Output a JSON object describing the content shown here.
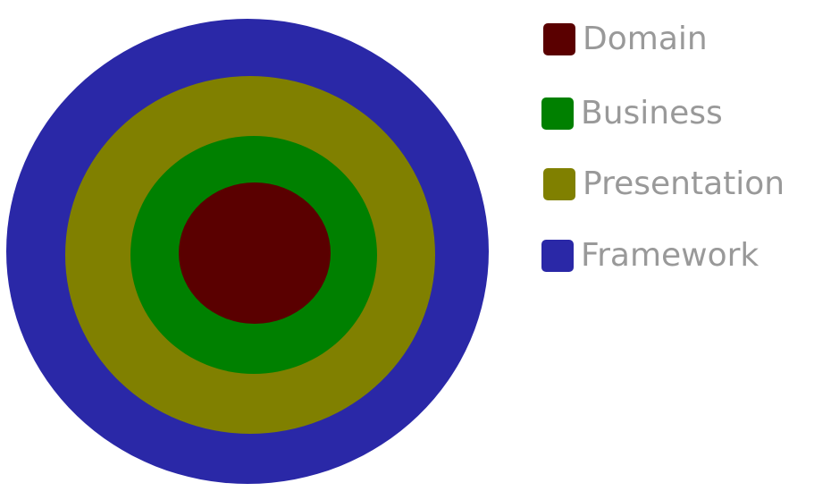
{
  "layers": [
    {
      "name": "Framework",
      "color": "#2a28a7"
    },
    {
      "name": "Presentation",
      "color": "#808000"
    },
    {
      "name": "Business",
      "color": "#008000"
    },
    {
      "name": "Domain",
      "color": "#5a0000"
    }
  ],
  "legend": [
    {
      "label": "Domain",
      "color": "#5a0000"
    },
    {
      "label": "Business",
      "color": "#008000"
    },
    {
      "label": "Presentation",
      "color": "#808000"
    },
    {
      "label": "Framework",
      "color": "#2a28a7"
    }
  ]
}
